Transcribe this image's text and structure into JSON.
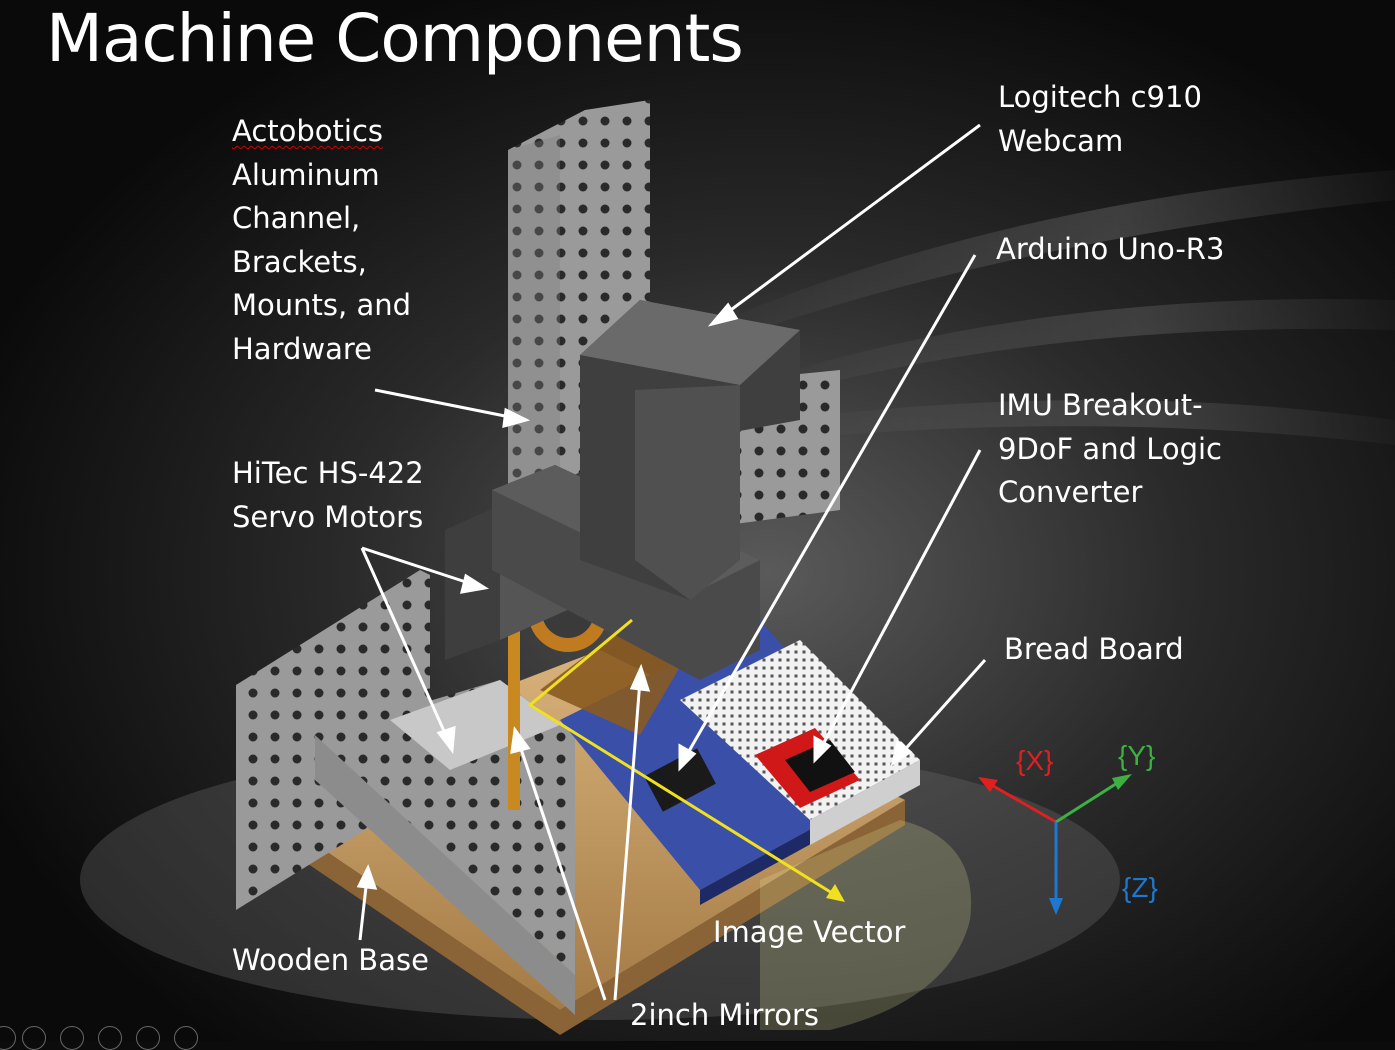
{
  "title": "Machine Components",
  "labels": {
    "actobotics": {
      "lines": [
        "Actobotics",
        "Aluminum",
        "Channel,",
        "Brackets,",
        "Mounts, and",
        "Hardware"
      ]
    },
    "servo": {
      "lines": [
        "HiTec HS-422",
        "Servo Motors"
      ]
    },
    "wooden_base": {
      "lines": [
        "Wooden Base"
      ]
    },
    "webcam": {
      "lines": [
        "Logitech c910",
        "Webcam"
      ]
    },
    "arduino": {
      "lines": [
        "Arduino Uno-R3"
      ]
    },
    "imu": {
      "lines": [
        "IMU Breakout-",
        "9DoF and Logic",
        "Converter"
      ]
    },
    "breadboard": {
      "lines": [
        "Bread Board"
      ]
    },
    "image_vector": {
      "lines": [
        "Image Vector"
      ]
    },
    "mirrors": {
      "lines": [
        "2inch Mirrors"
      ]
    }
  },
  "axes": {
    "x": {
      "label": "{X}",
      "color": "#e02020"
    },
    "y": {
      "label": "{Y}",
      "color": "#3cb043"
    },
    "z": {
      "label": "{Z}",
      "color": "#1e78d0"
    }
  },
  "colors": {
    "image_vector": "#f0e020",
    "background": "#0c0c0c"
  }
}
